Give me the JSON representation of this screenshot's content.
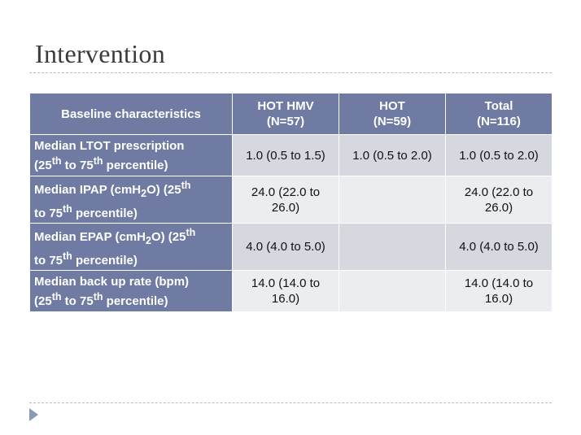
{
  "slide": {
    "title": "Intervention"
  },
  "table": {
    "header": [
      {
        "l1": "Baseline characteristics",
        "l2": ""
      },
      {
        "l1": "HOT HMV",
        "l2": "(N=57)"
      },
      {
        "l1": "HOT",
        "l2": "(N=59)"
      },
      {
        "l1": "Total",
        "l2": "(N=116)"
      }
    ],
    "rows": [
      {
        "label": {
          "html": "Median LTOT prescription<br>(25<sup>th</sup> to 75<sup>th</sup> percentile)",
          "text": "Median LTOT prescription (25th to 75th percentile)"
        },
        "cells": [
          {
            "l1": "1.0 (0.5 to 1.5)",
            "l2": ""
          },
          {
            "l1": "1.0 (0.5 to 2.0)",
            "l2": ""
          },
          {
            "l1": "1.0 (0.5 to 2.0)",
            "l2": ""
          }
        ]
      },
      {
        "label": {
          "html": "Median IPAP (cmH<sub>2</sub>O) (25<sup>th</sup><br>to 75<sup>th</sup> percentile)",
          "text": "Median IPAP (cmH2O) (25th to 75th percentile)"
        },
        "cells": [
          {
            "l1": "24.0 (22.0 to",
            "l2": "26.0)"
          },
          {
            "l1": "",
            "l2": ""
          },
          {
            "l1": "24.0 (22.0 to",
            "l2": "26.0)"
          }
        ]
      },
      {
        "label": {
          "html": "Median EPAP (cmH<sub>2</sub>O) (25<sup>th</sup><br>to 75<sup>th</sup> percentile)",
          "text": "Median EPAP (cmH2O) (25th to 75th percentile)"
        },
        "cells": [
          {
            "l1": "4.0 (4.0 to 5.0)",
            "l2": ""
          },
          {
            "l1": "",
            "l2": ""
          },
          {
            "l1": "4.0 (4.0 to 5.0)",
            "l2": ""
          }
        ]
      },
      {
        "label": {
          "html": "Median back up rate (bpm)<br>(25<sup>th</sup> to 75<sup>th</sup> percentile)",
          "text": "Median back up rate (bpm) (25th to 75th percentile)"
        },
        "cells": [
          {
            "l1": "14.0 (14.0 to",
            "l2": "16.0)"
          },
          {
            "l1": "",
            "l2": ""
          },
          {
            "l1": "14.0 (14.0 to",
            "l2": "16.0)"
          }
        ]
      }
    ]
  },
  "colors": {
    "header_bg": "#6f7ba3",
    "row_odd_bg": "#d6d8e0",
    "row_even_bg": "#ecedf1",
    "navigation_arrow": "#8a9ab5"
  },
  "icons": {
    "nav": "triangle-right-icon"
  }
}
